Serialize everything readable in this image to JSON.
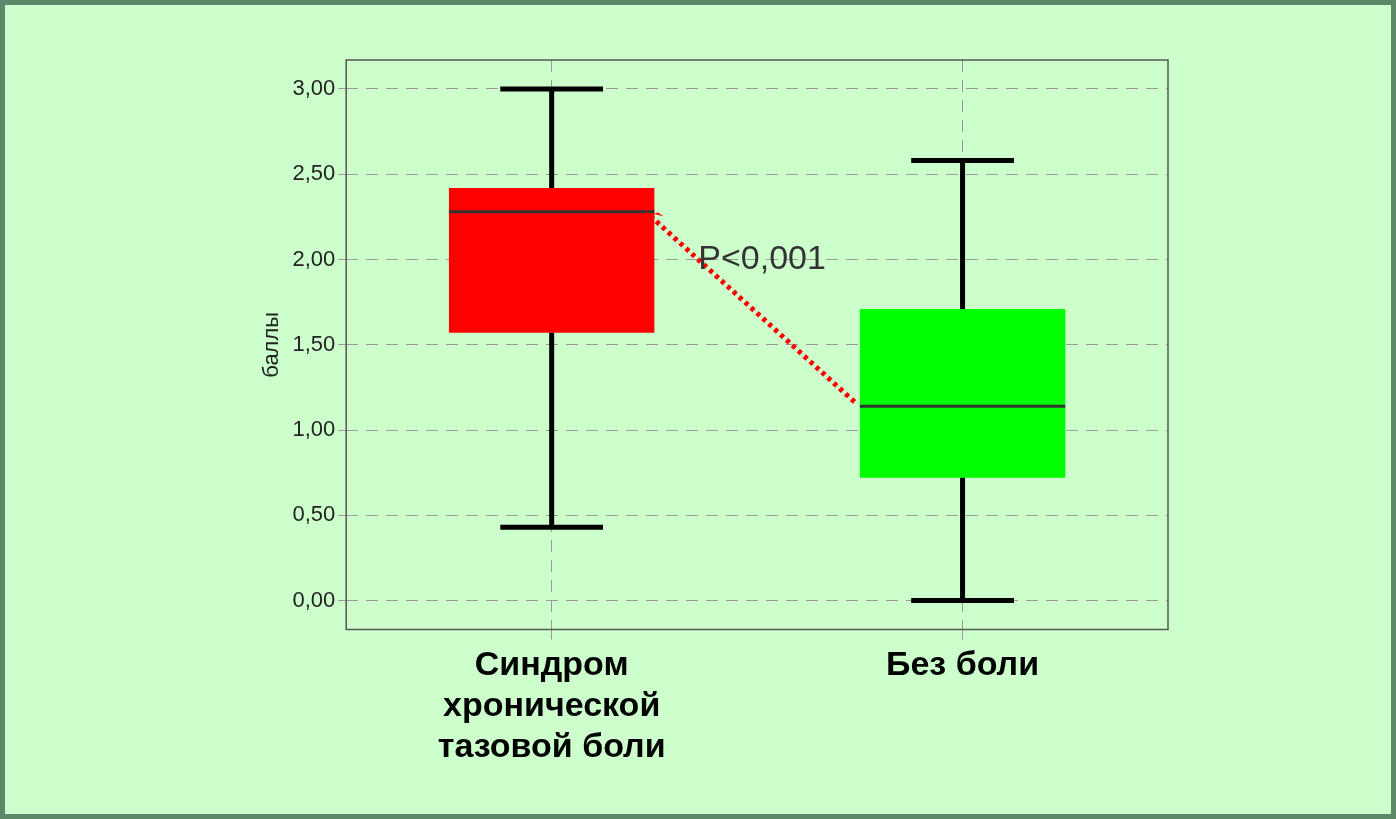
{
  "chart_data": {
    "type": "box",
    "ylabel": "баллы",
    "categories": [
      "Синдром хронической тазовой боли",
      "Без боли"
    ],
    "boxes": [
      {
        "low": 0.43,
        "q1": 1.57,
        "median": 2.28,
        "q3": 2.42,
        "high": 3.0
      },
      {
        "low": 0.0,
        "q1": 0.72,
        "median": 1.14,
        "q3": 1.71,
        "high": 2.58
      }
    ],
    "colors": [
      "#ff0000",
      "#00ff00"
    ],
    "ylim": [
      -0.17,
      3.17
    ],
    "yticks": [
      {
        "value": 0,
        "label": "0,00"
      },
      {
        "value": 0.5,
        "label": "0,50"
      },
      {
        "value": 1,
        "label": "1,00"
      },
      {
        "value": 1.5,
        "label": "1,50"
      },
      {
        "value": 2,
        "label": "2,00"
      },
      {
        "value": 2.5,
        "label": "2,50"
      },
      {
        "value": 3,
        "label": "3,00"
      }
    ],
    "grid": true,
    "legend": false,
    "annotations": [
      "P<0,001"
    ]
  }
}
